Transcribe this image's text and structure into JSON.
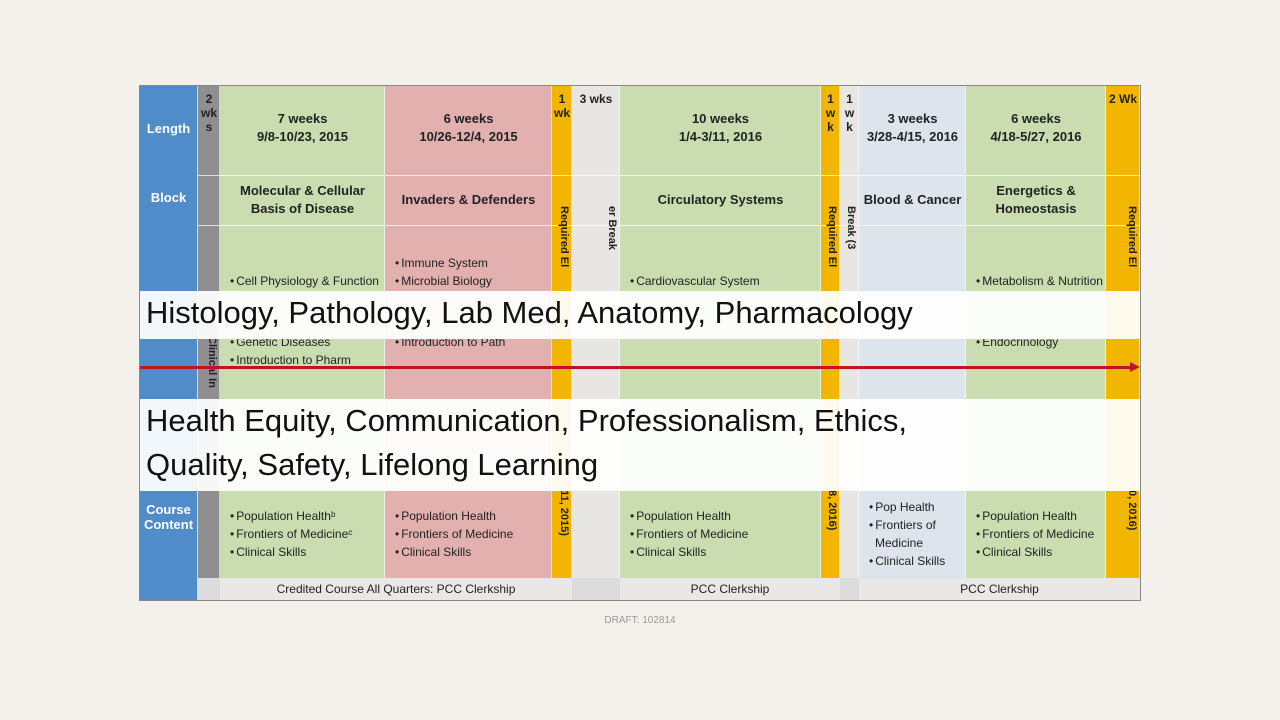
{
  "row_labels": [
    "Length",
    "Block",
    "Course Content"
  ],
  "columns": [
    {
      "length": "2 wks",
      "vertical": "Clinical In"
    },
    {
      "length": "7 weeks",
      "dates": "9/8-10/23, 2015",
      "block": "Molecular & Cellular Basis of Disease",
      "topics_top": [
        "Cell Physiology & Function"
      ],
      "topics_bottom": [
        "Genetic Diseases",
        "Introduction to Pharm"
      ],
      "course_content": [
        "Population Healthᵇ",
        "Frontiers of Medicineᶜ",
        "Clinical Skills"
      ]
    },
    {
      "length": "6 weeks",
      "dates": "10/26-12/4, 2015",
      "block": "Invaders & Defenders",
      "topics_top": [
        "Immune System",
        "Microbial Biology"
      ],
      "topics_bottom": [
        "Introduction to Path"
      ],
      "course_content": [
        "Population Health",
        "Frontiers of Medicine",
        "Clinical Skills"
      ]
    },
    {
      "length": "1 wk",
      "vertical": "Required El",
      "vertical_course": "11, 2015)"
    },
    {
      "length": "3 wks",
      "vertical": "er Break"
    },
    {
      "length": "10 weeks",
      "dates": "1/4-3/11, 2016",
      "block": "Circulatory Systems",
      "topics_top": [
        "Cardiovascular System"
      ],
      "course_content": [
        "Population Health",
        "Frontiers of Medicine",
        "Clinical Skills"
      ]
    },
    {
      "length": "1 wk",
      "vertical": "Required El",
      "vertical_course": "8, 2016)"
    },
    {
      "length": "1 wk",
      "vertical": "Break (3"
    },
    {
      "length": "3 weeks",
      "dates": "3/28-4/15, 2016",
      "block": "Blood & Cancer",
      "course_content": [
        "Pop Health",
        "Frontiers of Medicine",
        "Clinical Skills"
      ]
    },
    {
      "length": "6 weeks",
      "dates": "4/18-5/27, 2016",
      "block": "Energetics & Homeostasis",
      "topics_top": [
        "Metabolism & Nutrition"
      ],
      "topics_bottom": [
        "Endocrinology"
      ],
      "course_content": [
        "Population Health",
        "Frontiers of Medicine",
        "Clinical Skills"
      ]
    },
    {
      "length": "2 Wk",
      "vertical": "Required El",
      "vertical_course": "0, 2016)"
    }
  ],
  "clerkship_row": [
    "Credited Course All Quarters: PCC Clerkship",
    "PCC Clerkship",
    "PCC Clerkship"
  ],
  "overlays": [
    "Histology, Pathology, Lab Med, Anatomy, Pharmacology",
    "Health Equity, Communication, Professionalism, Ethics, Quality, Safety, Lifelong Learning"
  ],
  "footer": "DRAFT: 102814"
}
